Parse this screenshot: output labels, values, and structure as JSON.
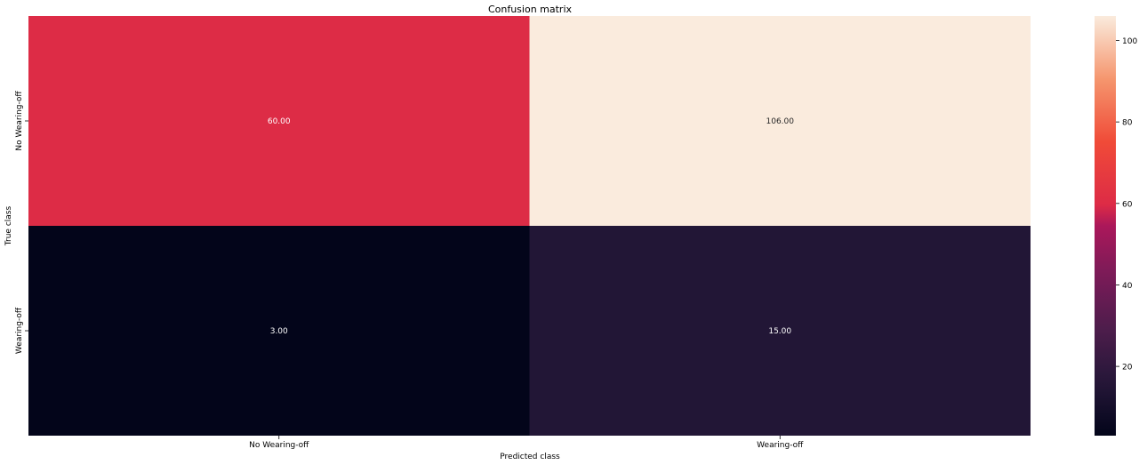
{
  "chart_data": {
    "type": "heatmap",
    "title": "Confusion matrix",
    "xlabel": "Predicted class",
    "ylabel": "True class",
    "x_categories": [
      "No Wearing-off",
      "Wearing-off"
    ],
    "y_categories": [
      "No Wearing-off",
      "Wearing-off"
    ],
    "values": [
      [
        60,
        106
      ],
      [
        3,
        15
      ]
    ],
    "annotations": [
      [
        "60.00",
        "106.00"
      ],
      [
        "3.00",
        "15.00"
      ]
    ],
    "colormap": "rocket",
    "vmin": 3,
    "vmax": 106,
    "colorbar_ticks": [
      20,
      40,
      60,
      80,
      100
    ]
  }
}
